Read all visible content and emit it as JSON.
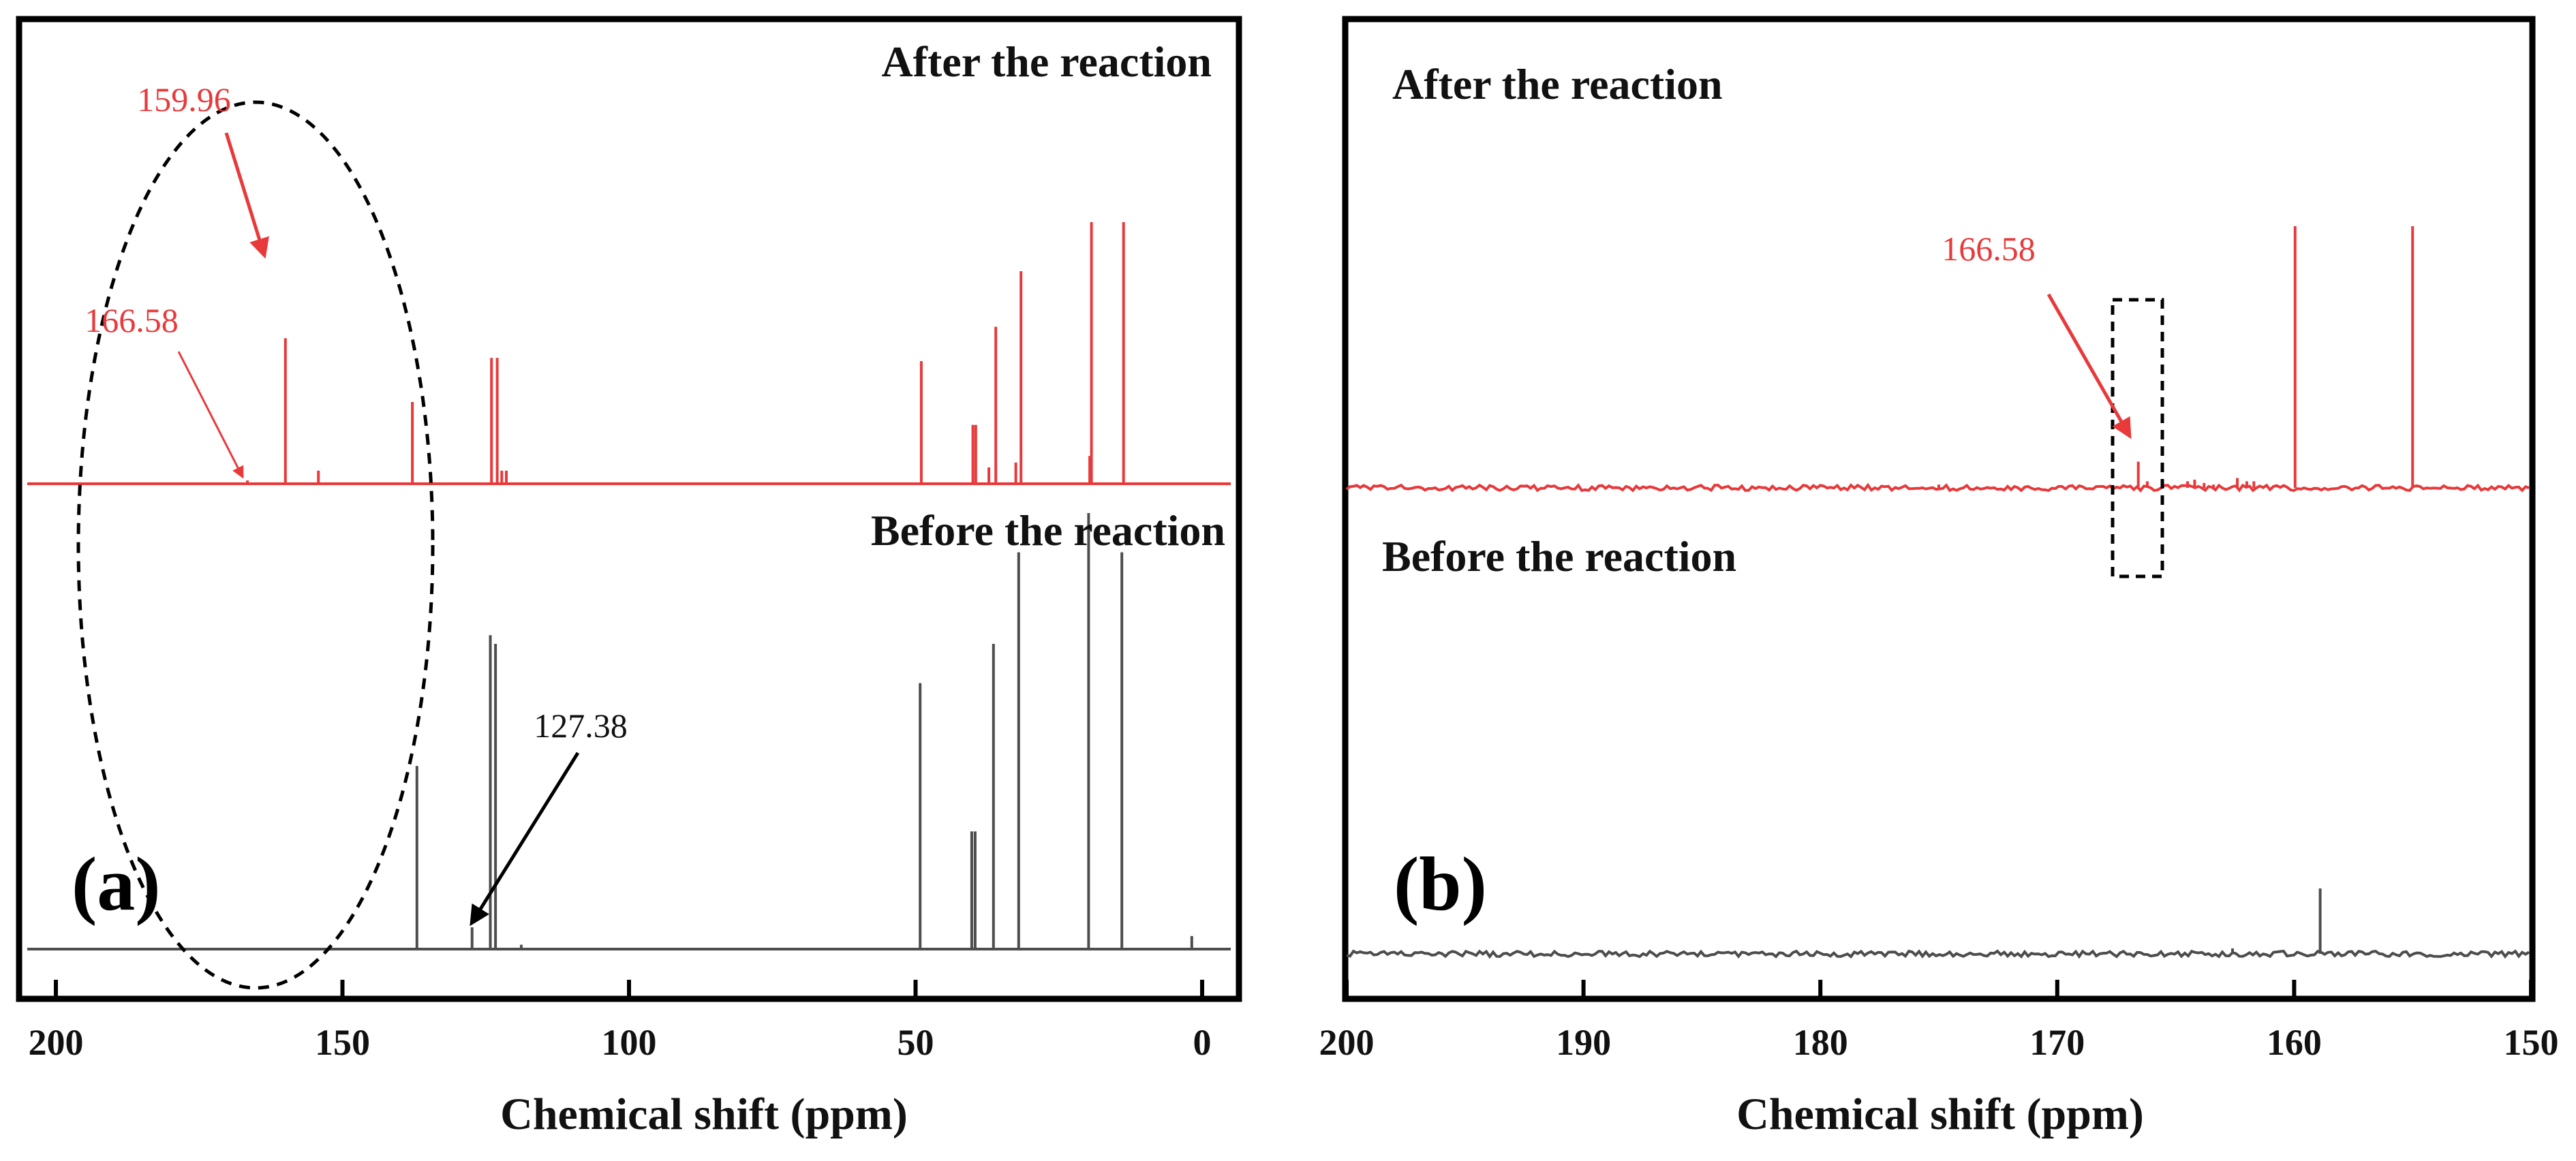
{
  "colors": {
    "after": "#e8393b",
    "before": "#4d4d4d",
    "frame": "#000000",
    "annotation_red": "#e8393b",
    "annotation_black": "#000000"
  },
  "chart_data": [
    {
      "type": "line",
      "panel_label": "(a)",
      "xlabel": "Chemical shift (ppm)",
      "ylabel": "",
      "xlim": [
        205,
        -5
      ],
      "xticks": [
        200,
        150,
        100,
        50,
        0
      ],
      "x_reversed": true,
      "grid": false,
      "series": [
        {
          "name": "After the reaction",
          "color": "#e8393b",
          "peaks": [
            {
              "x": 166.58,
              "h": 0.02
            },
            {
              "x": 159.96,
              "h": 0.89
            },
            {
              "x": 154.2,
              "h": 0.08
            },
            {
              "x": 137.8,
              "h": 0.5
            },
            {
              "x": 124.0,
              "h": 0.77
            },
            {
              "x": 123.0,
              "h": 0.77
            },
            {
              "x": 122.2,
              "h": 0.08
            },
            {
              "x": 121.4,
              "h": 0.08
            },
            {
              "x": 49.0,
              "h": 0.75
            },
            {
              "x": 40.0,
              "h": 0.36
            },
            {
              "x": 39.5,
              "h": 0.36
            },
            {
              "x": 37.2,
              "h": 0.1
            },
            {
              "x": 36.0,
              "h": 0.96
            },
            {
              "x": 32.5,
              "h": 0.13
            },
            {
              "x": 31.6,
              "h": 1.3
            },
            {
              "x": 19.6,
              "h": 0.17
            },
            {
              "x": 19.3,
              "h": 1.6
            },
            {
              "x": 13.7,
              "h": 1.6
            }
          ]
        },
        {
          "name": "Before the reaction",
          "color": "#4d4d4d",
          "peaks": [
            {
              "x": 137.0,
              "h": 0.42
            },
            {
              "x": 127.38,
              "h": 0.05
            },
            {
              "x": 124.2,
              "h": 0.72
            },
            {
              "x": 123.3,
              "h": 0.7
            },
            {
              "x": 118.8,
              "h": 0.01
            },
            {
              "x": 49.2,
              "h": 0.61
            },
            {
              "x": 40.2,
              "h": 0.27
            },
            {
              "x": 39.6,
              "h": 0.27
            },
            {
              "x": 36.4,
              "h": 0.7
            },
            {
              "x": 32.0,
              "h": 0.91
            },
            {
              "x": 19.8,
              "h": 1.0
            },
            {
              "x": 14.0,
              "h": 0.91
            },
            {
              "x": 1.8,
              "h": 0.03
            }
          ]
        }
      ],
      "annotations": [
        {
          "text": "159.96",
          "target_ppm": 159.96,
          "color": "#e8393b"
        },
        {
          "text": "166.58",
          "target_ppm": 166.58,
          "color": "#e8393b"
        },
        {
          "text": "127.38",
          "target_ppm": 127.38,
          "color": "#000000"
        }
      ],
      "highlight": {
        "shape": "dashed-ellipse",
        "range_ppm": [
          171,
          142
        ]
      }
    },
    {
      "type": "line",
      "panel_label": "(b)",
      "xlabel": "Chemical shift (ppm)",
      "ylabel": "",
      "xlim": [
        200,
        150
      ],
      "xticks": [
        200,
        190,
        180,
        170,
        160,
        150
      ],
      "x_reversed": true,
      "grid": false,
      "series": [
        {
          "name": "After the reaction",
          "color": "#e8393b",
          "peaks": [
            {
              "x": 175.0,
              "h": 0.02
            },
            {
              "x": 166.58,
              "h": 0.16
            },
            {
              "x": 166.2,
              "h": 0.04
            },
            {
              "x": 164.5,
              "h": 0.04
            },
            {
              "x": 164.2,
              "h": 0.05
            },
            {
              "x": 163.8,
              "h": 0.03
            },
            {
              "x": 163.4,
              "h": 0.02
            },
            {
              "x": 162.4,
              "h": 0.06
            },
            {
              "x": 162.0,
              "h": 0.04
            },
            {
              "x": 161.7,
              "h": 0.04
            },
            {
              "x": 159.96,
              "h": 1.6
            },
            {
              "x": 155.0,
              "h": 1.6
            }
          ]
        },
        {
          "name": "Before the reaction",
          "color": "#4d4d4d",
          "peaks": [
            {
              "x": 162.6,
              "h": 0.01
            },
            {
              "x": 158.9,
              "h": 0.12
            }
          ]
        }
      ],
      "annotations": [
        {
          "text": "166.58",
          "target_ppm": 166.58,
          "color": "#e8393b"
        }
      ],
      "highlight": {
        "shape": "dashed-rectangle",
        "range_ppm": [
          167.6,
          165.6
        ]
      }
    }
  ]
}
